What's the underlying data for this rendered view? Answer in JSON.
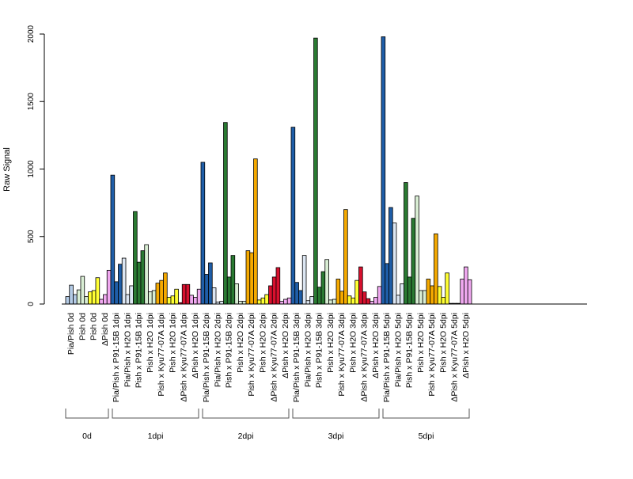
{
  "chart_data": {
    "type": "bar",
    "title": "",
    "xlabel": "",
    "ylabel": "Raw Signal",
    "ylim": [
      0,
      2000
    ],
    "yticks": [
      0,
      500,
      1000,
      1500,
      2000
    ],
    "grid": false,
    "legend": "none",
    "colors": {
      "Pia/Pish": "#b4cbe6",
      "Pia/Pish x P91-15B": "#1f5ea8",
      "Pia/Pish x H2O": "#dce6f2",
      "Pish x P91-15B": "#2a7a32",
      "Pish x H2O": "#d9eed4",
      "Pish x Kyu77-07A": "#f5a900",
      "Pish": "#f5f08a",
      "Pish x H2O (yellow)": "#ffff33",
      "ΔPish x Kyu77-07A": "#d8102e",
      "ΔPish": "#f0a8f0"
    },
    "categories": [
      "Pia/Pish 0d",
      "Pish 0d",
      "Pish 0d",
      "ΔPish 0d",
      "Pia/Pish x P91-15B 1dpi",
      "Pia/Pish x H2O 1dpi",
      "Pish x P91-15B 1dpi",
      "Pish x H2O 1dpi",
      "Pish x Kyu77-07A 1dpi",
      "Pish x H2O 1dpi",
      "ΔPish x Kyu77-07A 1dpi",
      "ΔPish x H2O 1dpi",
      "Pia/Pish x P91-15B 2dpi",
      "Pia/Pish x H2O 2dpi",
      "Pish x P91-15B 2dpi",
      "Pish x H2O 2dpi",
      "Pish x Kyu77-07A 2dpi",
      "Pish x H2O 2dpi",
      "ΔPish x Kyu77-07A 2dpi",
      "ΔPish x H2O 2dpi",
      "Pia/Pish x P91-15B 3dpi",
      "Pia/Pish x H2O 3dpi",
      "Pish x P91-15B 3dpi",
      "Pish x H2O 3dpi",
      "Pish x Kyu77-07A 3dpi",
      "Pish x H2O 3dpi",
      "ΔPish x Kyu77-07A 3dpi",
      "ΔPish x H2O 3dpi",
      "Pia/Pish x P91-15B 5dpi",
      "Pia/Pish x H2O 5dpi",
      "Pish x P91-15B 5dpi",
      "Pish x H2O 5dpi",
      "Pish x Kyu77-07A 5dpi",
      "Pish x H2O 5dpi",
      "ΔPish x Kyu77-07A 5dpi",
      "ΔPish x H2O 5dpi"
    ],
    "bar_color_keys": [
      "Pia/Pish",
      "Pish x H2O",
      "Pish x H2O (yellow)",
      "ΔPish",
      "Pia/Pish x P91-15B",
      "Pia/Pish x H2O",
      "Pish x P91-15B",
      "Pish x H2O",
      "Pish x Kyu77-07A",
      "Pish x H2O (yellow)",
      "ΔPish x Kyu77-07A",
      "ΔPish",
      "Pia/Pish x P91-15B",
      "Pia/Pish x H2O",
      "Pish x P91-15B",
      "Pish x H2O",
      "Pish x Kyu77-07A",
      "Pish x H2O (yellow)",
      "ΔPish x Kyu77-07A",
      "ΔPish",
      "Pia/Pish x P91-15B",
      "Pia/Pish x H2O",
      "Pish x P91-15B",
      "Pish x H2O",
      "Pish x Kyu77-07A",
      "Pish x H2O (yellow)",
      "ΔPish x Kyu77-07A",
      "ΔPish",
      "Pia/Pish x P91-15B",
      "Pia/Pish x H2O",
      "Pish x P91-15B",
      "Pish x H2O",
      "Pish x Kyu77-07A",
      "Pish x H2O (yellow)",
      "ΔPish x Kyu77-07A",
      "ΔPish"
    ],
    "replicate_values": [
      [
        55,
        140,
        70
      ],
      [
        105,
        205,
        55
      ],
      [
        90,
        100,
        195
      ],
      [
        35,
        70,
        250
      ],
      [
        955,
        165,
        295
      ],
      [
        340,
        70,
        135
      ],
      [
        685,
        310,
        395
      ],
      [
        440,
        90,
        100
      ],
      [
        155,
        175,
        230
      ],
      [
        50,
        60,
        110
      ],
      [
        10,
        145,
        145
      ],
      [
        65,
        50,
        110
      ],
      [
        1050,
        220,
        305
      ],
      [
        120,
        15,
        20
      ],
      [
        1345,
        200,
        360
      ],
      [
        150,
        20,
        20
      ],
      [
        395,
        380,
        1075
      ],
      [
        30,
        45,
        70
      ],
      [
        135,
        200,
        270
      ],
      [
        20,
        35,
        45
      ],
      [
        1310,
        160,
        100
      ],
      [
        360,
        25,
        55
      ],
      [
        1970,
        125,
        240
      ],
      [
        330,
        30,
        35
      ],
      [
        185,
        95,
        700
      ],
      [
        60,
        45,
        175
      ],
      [
        275,
        90,
        40
      ],
      [
        20,
        50,
        130
      ],
      [
        1980,
        300,
        715
      ],
      [
        600,
        65,
        150
      ],
      [
        900,
        200,
        635
      ],
      [
        800,
        100,
        100
      ],
      [
        185,
        135,
        520
      ],
      [
        130,
        50,
        230
      ],
      [
        5,
        5,
        5
      ],
      [
        185,
        275,
        180
      ]
    ],
    "groups": [
      {
        "label": "0d",
        "count": 4
      },
      {
        "label": "1dpi",
        "count": 8
      },
      {
        "label": "2dpi",
        "count": 8
      },
      {
        "label": "3dpi",
        "count": 8
      },
      {
        "label": "5dpi",
        "count": 8
      }
    ]
  }
}
